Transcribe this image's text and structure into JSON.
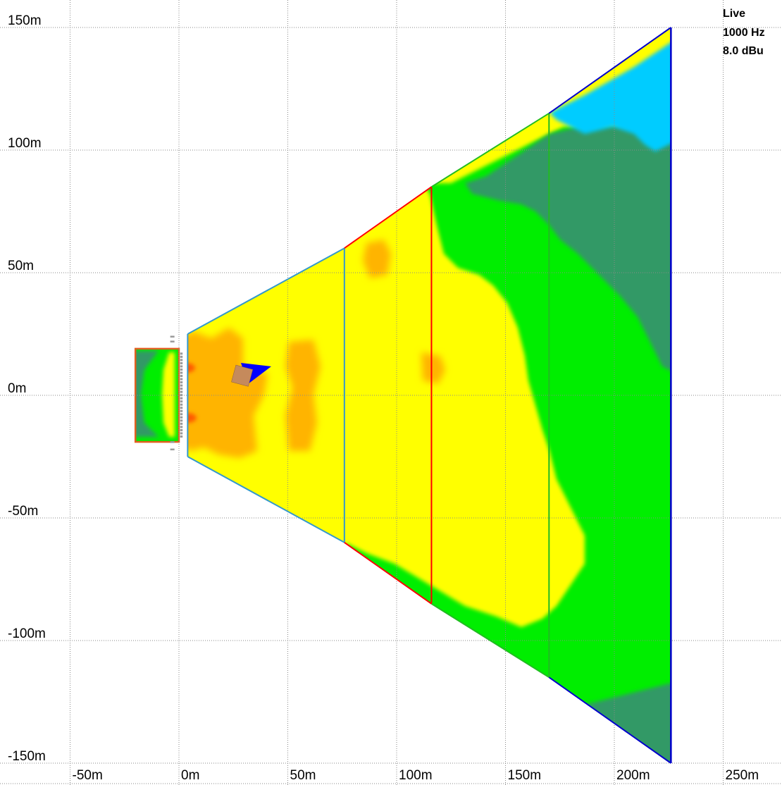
{
  "info_box": {
    "mode": "Live",
    "frequency": "1000 Hz",
    "level": "8.0 dBu"
  },
  "axes": {
    "x_unit": "m",
    "y_unit": "m",
    "x_range": [
      -55,
      270
    ],
    "y_range": [
      -155,
      155
    ],
    "x_ticks": [
      {
        "value": -50,
        "label": "-50m"
      },
      {
        "value": 0,
        "label": "0m"
      },
      {
        "value": 50,
        "label": "50m"
      },
      {
        "value": 100,
        "label": "100m"
      },
      {
        "value": 150,
        "label": "150m"
      },
      {
        "value": 200,
        "label": "200m"
      },
      {
        "value": 250,
        "label": "250m"
      }
    ],
    "y_ticks": [
      {
        "value": 150,
        "label": "150m"
      },
      {
        "value": 100,
        "label": "100m"
      },
      {
        "value": 50,
        "label": "50m"
      },
      {
        "value": 0,
        "label": "0m"
      },
      {
        "value": -50,
        "label": "-50m"
      },
      {
        "value": -100,
        "label": "-100m"
      },
      {
        "value": -150,
        "label": "-150m"
      }
    ],
    "grid": true
  },
  "colors": {
    "background": "#ffffff",
    "grid": "#8a8a8a",
    "spl_orange": "#ffb400",
    "spl_red": "#ff5a00",
    "spl_yellow": "#ffff00",
    "spl_green": "#00ee00",
    "spl_dark_green": "#339966",
    "spl_cyan": "#00ccff",
    "spl_blue": "#0000ff",
    "outline_blue": "#3399cc",
    "outline_red": "#ff0000",
    "outline_green": "#22bb22",
    "outline_dark_blue": "#0000cc",
    "stage_outline": "#e06020",
    "object_fill": "#c58a5c"
  },
  "venue": {
    "stage": {
      "x": [
        -20,
        0
      ],
      "y": [
        -19,
        19
      ]
    },
    "zone_1": {
      "points": [
        [
          4,
          25
        ],
        [
          76,
          60
        ],
        [
          76,
          -60
        ],
        [
          4,
          -25
        ]
      ]
    },
    "zone_2": {
      "points": [
        [
          76,
          60
        ],
        [
          116,
          85
        ],
        [
          116,
          -85
        ],
        [
          76,
          -60
        ]
      ]
    },
    "zone_3": {
      "points": [
        [
          116,
          85
        ],
        [
          170,
          115
        ],
        [
          170,
          -115
        ],
        [
          116,
          -85
        ]
      ]
    },
    "zone_4": {
      "points": [
        [
          170,
          115
        ],
        [
          226,
          150
        ],
        [
          226,
          -150
        ],
        [
          170,
          -115
        ]
      ]
    }
  },
  "object": {
    "position": [
      29,
      8
    ],
    "size": 8,
    "rotation_deg": 15
  }
}
